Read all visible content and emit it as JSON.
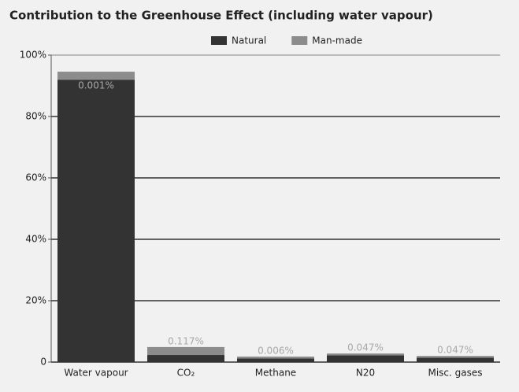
{
  "chart_data": {
    "type": "stacked_bar",
    "title": "Contribution to the Greenhouse Effect (including water vapour)",
    "categories": [
      "Water vapour",
      "CO₂",
      "Methane",
      "N20",
      "Misc. gases"
    ],
    "series": [
      {
        "name": "Natural",
        "color": "#333333",
        "values": [
          92,
          2.3,
          1.2,
          2.2,
          1.4
        ]
      },
      {
        "name": "Man-made",
        "color": "#8c8c8c",
        "values": [
          2.6,
          2.6,
          0.6,
          0.6,
          0.6
        ]
      }
    ],
    "annotations": [
      "0.001%",
      "0.117%",
      "0.006%",
      "0.047%",
      "0.047%"
    ],
    "ylim": [
      0,
      100
    ],
    "yticks": [
      {
        "value": 0,
        "label": "0"
      },
      {
        "value": 20,
        "label": "20%"
      },
      {
        "value": 40,
        "label": "40%"
      },
      {
        "value": 60,
        "label": "60%"
      },
      {
        "value": 80,
        "label": "80%"
      },
      {
        "value": 100,
        "label": "100%"
      }
    ],
    "grid": true,
    "legend": "top"
  }
}
